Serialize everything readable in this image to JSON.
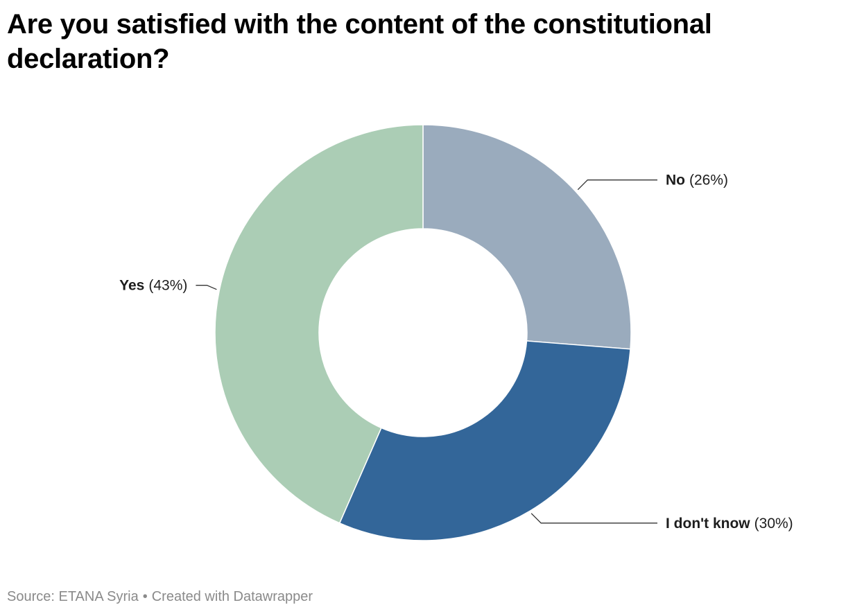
{
  "header": {
    "title": "Are you satisfied with the content of the constitutional declaration?"
  },
  "footer": {
    "source": "Source: ETANA Syria",
    "separator": "•",
    "credit": "Created with Datawrapper"
  },
  "chart_data": {
    "type": "pie",
    "variant": "donut",
    "title": "Are you satisfied with the content of the constitutional declaration?",
    "slices": [
      {
        "label": "No",
        "value": 26,
        "value_text": "(26%)",
        "color": "#9aabbd",
        "label_side": "right"
      },
      {
        "label": "I don't know",
        "value": 30,
        "value_text": "(30%)",
        "color": "#336699",
        "label_side": "right"
      },
      {
        "label": "Yes",
        "value": 43,
        "value_text": "(43%)",
        "color": "#abcdb5",
        "label_side": "left"
      }
    ],
    "legend": "none"
  }
}
